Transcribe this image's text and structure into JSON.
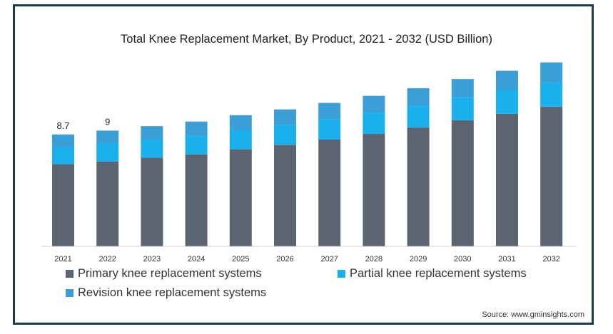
{
  "chart_data": {
    "type": "bar",
    "stacked": true,
    "title": "Total Knee Replacement Market, By Product, 2021 - 2032 (USD Billion)",
    "categories": [
      "2021",
      "2022",
      "2023",
      "2024",
      "2025",
      "2026",
      "2027",
      "2028",
      "2029",
      "2030",
      "2031",
      "2032"
    ],
    "series": [
      {
        "name": "Primary knee replacement systems",
        "color": "#5b6470",
        "values": [
          6.4,
          6.6,
          6.9,
          7.15,
          7.55,
          7.9,
          8.3,
          8.75,
          9.25,
          9.8,
          10.3,
          10.85
        ]
      },
      {
        "name": "Partial knee replacement systems",
        "color": "#1ab0ee",
        "values": [
          1.35,
          1.4,
          1.4,
          1.45,
          1.5,
          1.55,
          1.6,
          1.65,
          1.7,
          1.8,
          1.85,
          1.9
        ]
      },
      {
        "name": "Revision knee replacement systems",
        "color": "#3b9fd6",
        "values": [
          0.95,
          1.0,
          1.05,
          1.1,
          1.15,
          1.2,
          1.25,
          1.3,
          1.35,
          1.4,
          1.5,
          1.55
        ]
      }
    ],
    "data_labels": [
      {
        "category": "2021",
        "text": "8.7"
      },
      {
        "category": "2022",
        "text": "9"
      }
    ],
    "ylim": [
      0,
      14.5
    ],
    "grid": false,
    "legend_position": "bottom"
  },
  "source": "Source: www.gminsights.com"
}
